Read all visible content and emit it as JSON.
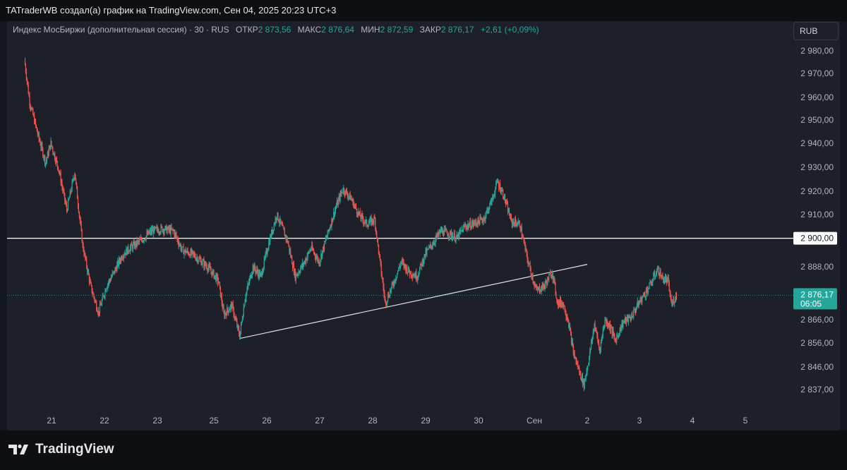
{
  "header": {
    "credit": "TATraderWB создал(а) график на TradingView.com, Сен 04, 2025 20:23 UTC+3"
  },
  "legend": {
    "symbol": "Индекс МосБиржи (дополнительная сессия) · 30 · RUS",
    "open_label": "ОТКР",
    "open": "2 873,56",
    "high_label": "МАКС",
    "high": "2 876,64",
    "low_label": "МИН",
    "low": "2 872,59",
    "close_label": "ЗАКР",
    "close": "2 876,17",
    "change": "+2,61 (+0,09%)"
  },
  "currency_button": "RUB",
  "brand": {
    "name": "TradingView",
    "icon": "tradingview-logo-icon"
  },
  "colors": {
    "up": "#26a69a",
    "down": "#ef5350",
    "background": "#1d2029",
    "line": "#ffffff"
  },
  "chart_data": {
    "type": "candlestick",
    "timeframe": "30",
    "currency": "RUB",
    "x_ticks": [
      "21",
      "22",
      "23",
      "25",
      "26",
      "27",
      "28",
      "29",
      "30",
      "Сен",
      "2",
      "3",
      "4",
      "5"
    ],
    "y_ticks": [
      "2 980,00",
      "2 970,00",
      "2 960,00",
      "2 950,00",
      "2 940,00",
      "2 930,00",
      "2 920,00",
      "2 910,00",
      "2 888,00",
      "2 866,00",
      "2 856,00",
      "2 846,00",
      "2 837,00"
    ],
    "ylim": [
      2832,
      2986
    ],
    "price_series": [
      [
        20.5,
        2976
      ],
      [
        20.6,
        2958
      ],
      [
        20.75,
        2944
      ],
      [
        20.9,
        2932
      ],
      [
        21.0,
        2940
      ],
      [
        21.15,
        2929
      ],
      [
        21.3,
        2912
      ],
      [
        21.45,
        2928
      ],
      [
        21.6,
        2897
      ],
      [
        21.75,
        2880
      ],
      [
        21.9,
        2869
      ],
      [
        22.05,
        2880
      ],
      [
        22.2,
        2886
      ],
      [
        22.35,
        2893
      ],
      [
        22.5,
        2896
      ],
      [
        22.7,
        2899
      ],
      [
        22.9,
        2903
      ],
      [
        23.1,
        2904
      ],
      [
        23.3,
        2903
      ],
      [
        23.45,
        2895
      ],
      [
        23.65,
        2893
      ],
      [
        23.9,
        2888
      ],
      [
        24.1,
        2882
      ],
      [
        24.2,
        2868
      ],
      [
        24.35,
        2872
      ],
      [
        24.5,
        2859
      ],
      [
        24.6,
        2875
      ],
      [
        24.75,
        2888
      ],
      [
        24.9,
        2884
      ],
      [
        25.05,
        2898
      ],
      [
        25.2,
        2910
      ],
      [
        25.4,
        2899
      ],
      [
        25.55,
        2884
      ],
      [
        25.7,
        2889
      ],
      [
        25.85,
        2896
      ],
      [
        26.0,
        2890
      ],
      [
        26.15,
        2901
      ],
      [
        26.3,
        2912
      ],
      [
        26.45,
        2921
      ],
      [
        26.6,
        2917
      ],
      [
        26.75,
        2910
      ],
      [
        26.9,
        2906
      ],
      [
        27.05,
        2908
      ],
      [
        27.15,
        2890
      ],
      [
        27.25,
        2873
      ],
      [
        27.4,
        2881
      ],
      [
        27.55,
        2890
      ],
      [
        27.7,
        2886
      ],
      [
        27.85,
        2884
      ],
      [
        28.0,
        2893
      ],
      [
        28.15,
        2898
      ],
      [
        28.3,
        2903
      ],
      [
        28.45,
        2902
      ],
      [
        28.6,
        2900
      ],
      [
        28.75,
        2905
      ],
      [
        28.9,
        2906
      ],
      [
        29.1,
        2908
      ],
      [
        29.25,
        2916
      ],
      [
        29.35,
        2924
      ],
      [
        29.45,
        2919
      ],
      [
        29.6,
        2907
      ],
      [
        29.75,
        2906
      ],
      [
        29.9,
        2890
      ],
      [
        30.05,
        2878
      ],
      [
        30.2,
        2880
      ],
      [
        30.35,
        2886
      ],
      [
        30.45,
        2873
      ],
      [
        30.55,
        2873
      ],
      [
        30.65,
        2866
      ],
      [
        30.75,
        2852
      ],
      [
        30.85,
        2845
      ],
      [
        30.95,
        2839
      ],
      [
        31.05,
        2850
      ],
      [
        31.15,
        2864
      ],
      [
        31.25,
        2853
      ],
      [
        31.35,
        2866
      ],
      [
        31.45,
        2863
      ],
      [
        31.55,
        2857
      ],
      [
        31.7,
        2865
      ],
      [
        31.85,
        2867
      ],
      [
        32.0,
        2873
      ],
      [
        32.15,
        2878
      ],
      [
        32.25,
        2882
      ],
      [
        32.35,
        2887
      ],
      [
        32.45,
        2883
      ],
      [
        32.55,
        2882
      ],
      [
        32.62,
        2872
      ],
      [
        32.7,
        2876
      ]
    ],
    "last_price": "2 876,17",
    "countdown": "06:05",
    "horizontal_line": {
      "value": 2900,
      "label": "2 900,00"
    },
    "trend_lines": [
      {
        "from": [
          24.5,
          2858
        ],
        "to": [
          31.0,
          2889
        ]
      }
    ]
  }
}
